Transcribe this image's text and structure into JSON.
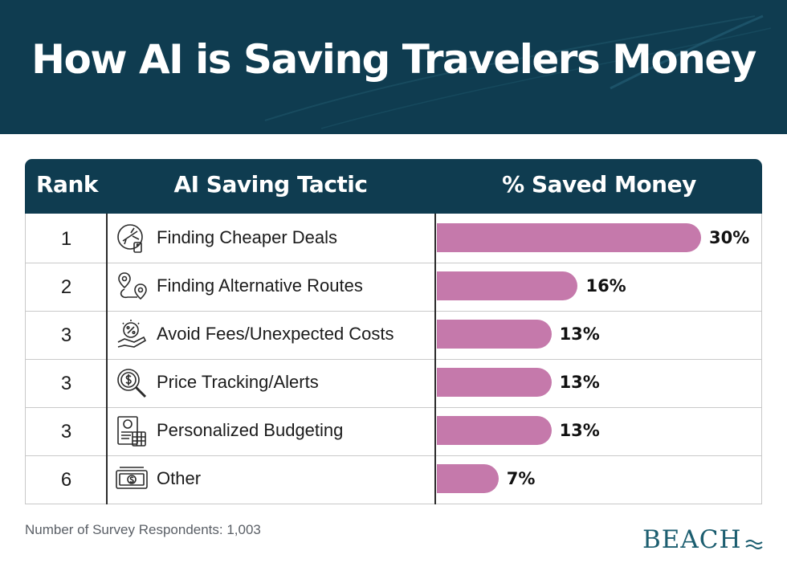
{
  "title": "How AI is Saving Travelers Money",
  "table": {
    "headers": {
      "rank": "Rank",
      "tactic": "AI Saving Tactic",
      "pct": "% Saved Money"
    },
    "rows": [
      {
        "rank": "1",
        "tactic": "Finding Cheaper Deals",
        "pct_label": "30%",
        "icon": "plane-price-tag-icon"
      },
      {
        "rank": "2",
        "tactic": "Finding Alternative Routes",
        "pct_label": "16%",
        "icon": "route-map-pin-icon"
      },
      {
        "rank": "3",
        "tactic": "Avoid Fees/Unexpected Costs",
        "pct_label": "13%",
        "icon": "hand-percent-icon"
      },
      {
        "rank": "3",
        "tactic": "Price Tracking/Alerts",
        "pct_label": "13%",
        "icon": "magnifier-dollar-icon"
      },
      {
        "rank": "3",
        "tactic": "Personalized Budgeting",
        "pct_label": "13%",
        "icon": "budget-calculator-icon"
      },
      {
        "rank": "6",
        "tactic": "Other",
        "pct_label": "7%",
        "icon": "banknote-icon"
      }
    ]
  },
  "chart_data": {
    "type": "bar",
    "orientation": "horizontal",
    "categories": [
      "Finding Cheaper Deals",
      "Finding Alternative Routes",
      "Avoid Fees/Unexpected Costs",
      "Price Tracking/Alerts",
      "Personalized Budgeting",
      "Other"
    ],
    "values": [
      30,
      16,
      13,
      13,
      13,
      7
    ],
    "unit": "%",
    "xlim": [
      0,
      30
    ],
    "grid": false,
    "bar_color": "#c579ab"
  },
  "footnote": "Number of Survey Respondents: 1,003",
  "logo": {
    "text": "BEACH"
  },
  "colors": {
    "header": "#0f3c50",
    "bar": "#c579ab",
    "logo": "#1c5e70"
  }
}
